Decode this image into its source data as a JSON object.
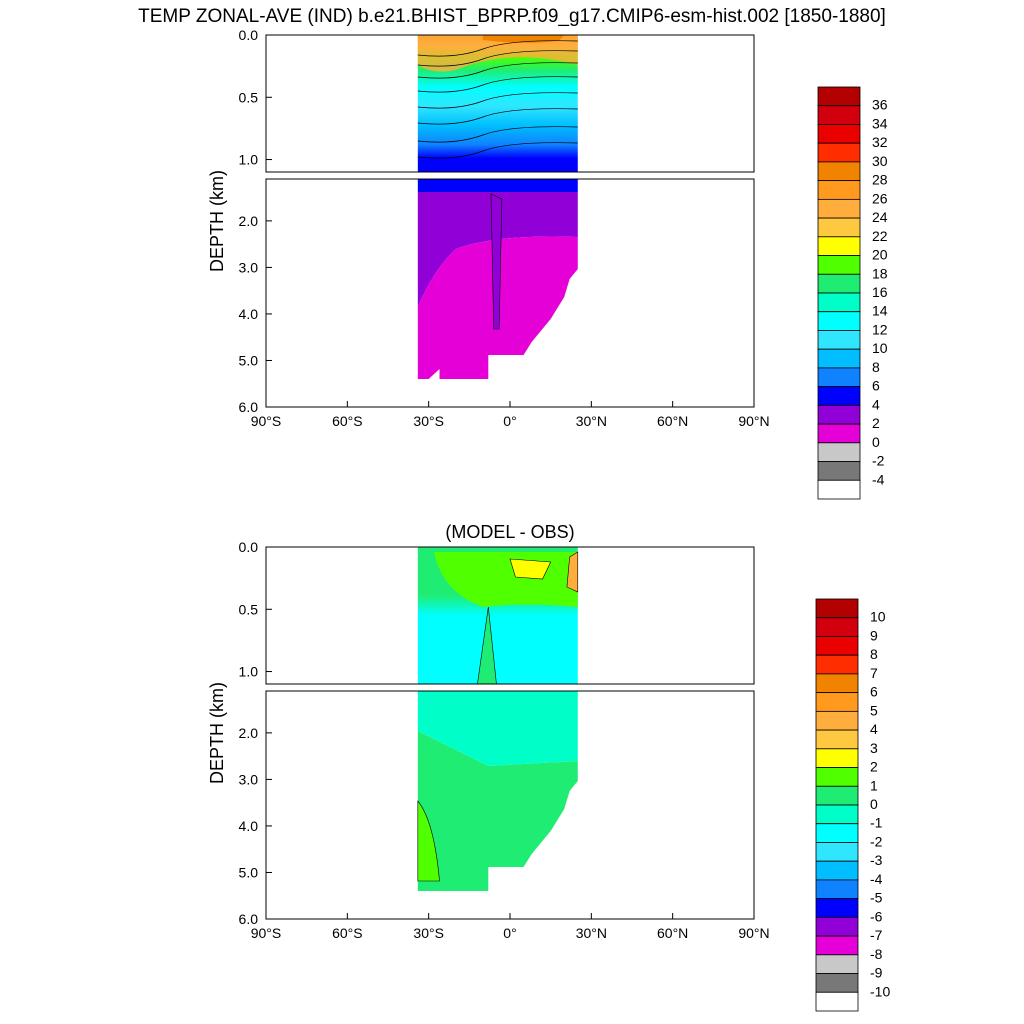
{
  "title": "TEMP ZONAL-AVE (IND) b.e21.BHIST_BPRP.f09_g17.CMIP6-esm-hist.002 [1850-1880]",
  "chart_data": [
    {
      "type": "contour",
      "title": "",
      "ylabel": "DEPTH (km)",
      "xlabel": "",
      "xlim": [
        -90,
        90
      ],
      "ylim": [
        6.0,
        0.0
      ],
      "x_ticks": [
        {
          "value": -90,
          "label": "90°S"
        },
        {
          "value": -60,
          "label": "60°S"
        },
        {
          "value": -30,
          "label": "30°S"
        },
        {
          "value": 0,
          "label": "0°"
        },
        {
          "value": 30,
          "label": "30°N"
        },
        {
          "value": 60,
          "label": "60°N"
        },
        {
          "value": 90,
          "label": "90°N"
        }
      ],
      "upper_panel": {
        "ylim": [
          0.0,
          1.1
        ],
        "ticks": [
          {
            "value": 0.0,
            "label": "0.0"
          },
          {
            "value": 0.5,
            "label": "0.5"
          },
          {
            "value": 1.0,
            "label": "1.0"
          }
        ]
      },
      "lower_panel": {
        "ylim": [
          1.1,
          6.0
        ],
        "ticks": [
          {
            "value": 2.0,
            "label": "2.0"
          },
          {
            "value": 3.0,
            "label": "3.0"
          },
          {
            "value": 4.0,
            "label": "4.0"
          },
          {
            "value": 5.0,
            "label": "5.0"
          },
          {
            "value": 6.0,
            "label": "6.0"
          }
        ]
      },
      "colorbar": {
        "labels": [
          "36",
          "34",
          "32",
          "30",
          "28",
          "26",
          "24",
          "22",
          "20",
          "18",
          "16",
          "14",
          "12",
          "10",
          "8",
          "6",
          "4",
          "2",
          "0",
          "-2",
          "-4"
        ],
        "colors": [
          "#b30000",
          "#d2000e",
          "#eb0000",
          "#ff2d00",
          "#f08300",
          "#ff9a1f",
          "#ffae3e",
          "#ffc841",
          "#ffff00",
          "#50ff00",
          "#1fed73",
          "#00ffc8",
          "#00ffff",
          "#30e6ff",
          "#00beff",
          "#0f82ff",
          "#0000ff",
          "#9000d7",
          "#e600d8",
          "#c8c8c8",
          "#787878",
          "#ffffff"
        ]
      },
      "data": {
        "domain_lat": [
          -34,
          25
        ],
        "surface_max": 29,
        "levels_by_depth": [
          {
            "depth": 0.0,
            "value": 28
          },
          {
            "depth": 0.1,
            "value": 22
          },
          {
            "depth": 0.2,
            "value": 18
          },
          {
            "depth": 0.3,
            "value": 15
          },
          {
            "depth": 0.45,
            "value": 12
          },
          {
            "depth": 0.6,
            "value": 10
          },
          {
            "depth": 0.8,
            "value": 8
          },
          {
            "depth": 1.0,
            "value": 6
          },
          {
            "depth": 1.5,
            "value": 4
          },
          {
            "depth": 2.5,
            "value": 2
          }
        ],
        "min_deep": 1
      }
    },
    {
      "type": "contour",
      "title": "(MODEL - OBS)",
      "ylabel": "DEPTH (km)",
      "xlabel": "",
      "xlim": [
        -90,
        90
      ],
      "ylim": [
        6.0,
        0.0
      ],
      "x_ticks": [
        {
          "value": -90,
          "label": "90°S"
        },
        {
          "value": -60,
          "label": "60°S"
        },
        {
          "value": -30,
          "label": "30°S"
        },
        {
          "value": 0,
          "label": "0°"
        },
        {
          "value": 30,
          "label": "30°N"
        },
        {
          "value": 60,
          "label": "60°N"
        },
        {
          "value": 90,
          "label": "90°N"
        }
      ],
      "upper_panel": {
        "ylim": [
          0.0,
          1.1
        ],
        "ticks": [
          {
            "value": 0.0,
            "label": "0.0"
          },
          {
            "value": 0.5,
            "label": "0.5"
          },
          {
            "value": 1.0,
            "label": "1.0"
          }
        ]
      },
      "lower_panel": {
        "ylim": [
          1.1,
          6.0
        ],
        "ticks": [
          {
            "value": 2.0,
            "label": "2.0"
          },
          {
            "value": 3.0,
            "label": "3.0"
          },
          {
            "value": 4.0,
            "label": "4.0"
          },
          {
            "value": 5.0,
            "label": "5.0"
          },
          {
            "value": 6.0,
            "label": "6.0"
          }
        ]
      },
      "colorbar": {
        "labels": [
          "10",
          "9",
          "8",
          "7",
          "6",
          "5",
          "4",
          "3",
          "2",
          "1",
          "0",
          "-1",
          "-2",
          "-3",
          "-4",
          "-5",
          "-6",
          "-7",
          "-8",
          "-9",
          "-10"
        ],
        "colors": [
          "#b30000",
          "#d2000e",
          "#eb0000",
          "#ff2d00",
          "#f08300",
          "#ff9a1f",
          "#ffae3e",
          "#ffc841",
          "#ffff00",
          "#50ff00",
          "#1fed73",
          "#00ffc8",
          "#00ffff",
          "#30e6ff",
          "#00beff",
          "#0f82ff",
          "#0000ff",
          "#9000d7",
          "#e600d8",
          "#c8c8c8",
          "#787878",
          "#ffffff"
        ]
      },
      "data": {
        "domain_lat": [
          -34,
          25
        ],
        "notes_values": {
          "surface_band": 1,
          "mid_band": -1,
          "deep_band": 0,
          "max_warm": 4,
          "min_cold": -1
        }
      }
    }
  ]
}
